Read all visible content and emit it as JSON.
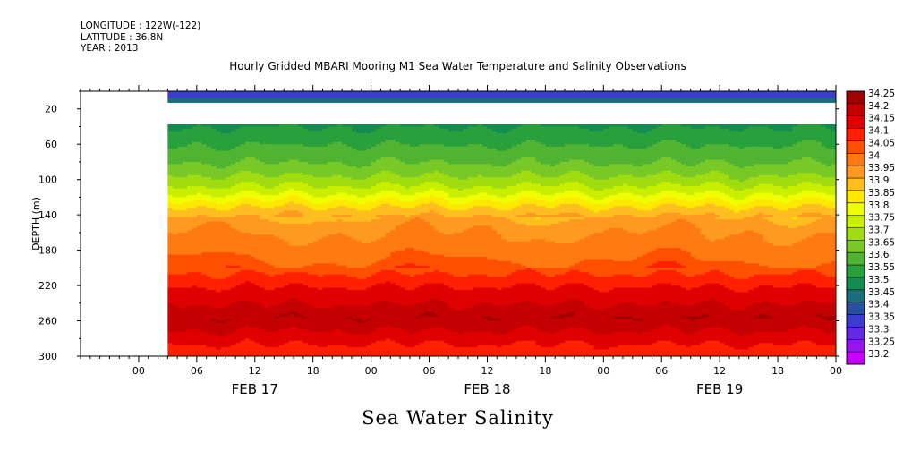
{
  "header": {
    "longitude": "LONGITUDE : 122W(-122)",
    "latitude": "LATITUDE : 36.8N",
    "year": "YEAR : 2013"
  },
  "chart_data": {
    "type": "heatmap",
    "title": "Hourly Gridded MBARI Mooring M1 Sea Water Temperature and Salinity Observations",
    "xlabel": "Sea Water Salinity",
    "ylabel": "DEPTH (m)",
    "ylim": [
      300,
      0
    ],
    "yticks": [
      "20",
      "60",
      "100",
      "140",
      "180",
      "220",
      "260",
      "300"
    ],
    "ytick_values": [
      20,
      60,
      100,
      140,
      180,
      220,
      260,
      300
    ],
    "xlim_hours": [
      -6,
      72
    ],
    "xticks": [
      "00",
      "06",
      "12",
      "18",
      "00",
      "06",
      "12",
      "18",
      "00",
      "06",
      "12",
      "18",
      "00"
    ],
    "xtick_hours": [
      0,
      6,
      12,
      18,
      24,
      30,
      36,
      42,
      48,
      54,
      60,
      66,
      72
    ],
    "date_labels": [
      {
        "label": "FEB 17",
        "hour": 12
      },
      {
        "label": "FEB 18",
        "hour": 36
      },
      {
        "label": "FEB 19",
        "hour": 60
      }
    ],
    "data_start_hour": 3,
    "missing_depth_range": [
      12,
      37
    ],
    "legend_levels": [
      "34.25",
      "34.2",
      "34.15",
      "34.1",
      "34.05",
      "34",
      "33.95",
      "33.9",
      "33.85",
      "33.8",
      "33.75",
      "33.7",
      "33.65",
      "33.6",
      "33.55",
      "33.5",
      "33.45",
      "33.4",
      "33.35",
      "33.3",
      "33.25",
      "33.2"
    ],
    "legend_colors": [
      "#a00000",
      "#c40000",
      "#e00000",
      "#ff2000",
      "#ff5000",
      "#ff7a10",
      "#ff9a20",
      "#ffbe20",
      "#ffe800",
      "#f0ff00",
      "#c8ee00",
      "#a0dc10",
      "#78c828",
      "#50b432",
      "#28a03c",
      "#138c50",
      "#1a6e7a",
      "#2850a0",
      "#3c3cd2",
      "#6428e6",
      "#9614f0",
      "#c800ff"
    ],
    "profile": [
      {
        "depth": 5,
        "value": 33.38
      },
      {
        "depth": 10,
        "value": 33.45
      },
      {
        "depth": 40,
        "value": 33.55
      },
      {
        "depth": 60,
        "value": 33.6
      },
      {
        "depth": 80,
        "value": 33.65
      },
      {
        "depth": 100,
        "value": 33.72
      },
      {
        "depth": 115,
        "value": 33.8
      },
      {
        "depth": 125,
        "value": 33.87
      },
      {
        "depth": 135,
        "value": 33.93
      },
      {
        "depth": 150,
        "value": 33.99
      },
      {
        "depth": 180,
        "value": 34.02
      },
      {
        "depth": 200,
        "value": 34.08
      },
      {
        "depth": 220,
        "value": 34.15
      },
      {
        "depth": 240,
        "value": 34.2
      },
      {
        "depth": 255,
        "value": 34.25
      },
      {
        "depth": 270,
        "value": 34.2
      },
      {
        "depth": 285,
        "value": 34.15
      },
      {
        "depth": 300,
        "value": 34.12
      }
    ]
  }
}
